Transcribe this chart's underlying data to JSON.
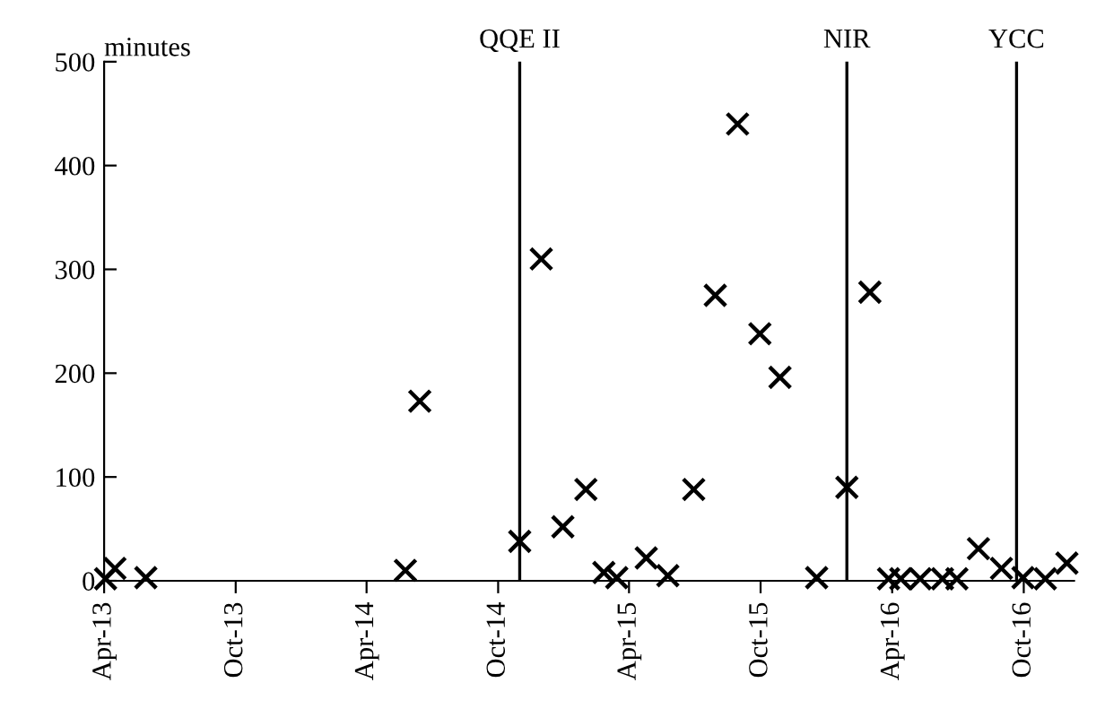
{
  "chart_data": {
    "type": "scatter",
    "ylabel": "minutes",
    "marker": "cross",
    "grid": false,
    "legend": false,
    "x": [
      "2013-04-03",
      "2013-04-16",
      "2013-05-29",
      "2014-05-25",
      "2014-06-14",
      "2014-10-31",
      "2014-11-30",
      "2014-12-30",
      "2015-01-31",
      "2015-02-25",
      "2015-03-15",
      "2015-04-25",
      "2015-05-25",
      "2015-06-30",
      "2015-07-30",
      "2015-08-30",
      "2015-09-30",
      "2015-10-28",
      "2015-12-18",
      "2016-01-29",
      "2016-03-01",
      "2016-03-27",
      "2016-04-13",
      "2016-05-10",
      "2016-06-10",
      "2016-06-30",
      "2016-07-30",
      "2016-08-31",
      "2016-09-30",
      "2016-10-31",
      "2016-11-30"
    ],
    "series": [
      {
        "color": "#000000",
        "values": [
          2,
          12,
          3,
          10,
          173,
          38,
          310,
          52,
          88,
          8,
          3,
          22,
          5,
          88,
          275,
          440,
          238,
          196,
          3,
          90,
          278,
          2,
          2,
          2,
          2,
          2,
          31,
          12,
          3,
          2,
          17
        ]
      }
    ],
    "xlim": [
      "2013-04-01",
      "2016-12-10"
    ],
    "xticks": [
      {
        "value": "2013-04-01",
        "label": "Apr-13"
      },
      {
        "value": "2013-10-01",
        "label": "Oct-13"
      },
      {
        "value": "2014-04-01",
        "label": "Apr-14"
      },
      {
        "value": "2014-10-01",
        "label": "Oct-14"
      },
      {
        "value": "2015-04-01",
        "label": "Apr-15"
      },
      {
        "value": "2015-10-01",
        "label": "Oct-15"
      },
      {
        "value": "2016-04-01",
        "label": "Apr-16"
      },
      {
        "value": "2016-10-01",
        "label": "Oct-16"
      }
    ],
    "ylim": [
      0,
      500
    ],
    "yticks": [
      0,
      100,
      200,
      300,
      400,
      500
    ],
    "ref_lines": [
      {
        "axis": "x",
        "value": "2014-10-31",
        "label": "QQE II",
        "color": "#000000"
      },
      {
        "axis": "x",
        "value": "2016-01-29",
        "label": "NIR",
        "color": "#000000"
      },
      {
        "axis": "x",
        "value": "2016-09-21",
        "label": "YCC",
        "color": "#000000"
      }
    ]
  }
}
